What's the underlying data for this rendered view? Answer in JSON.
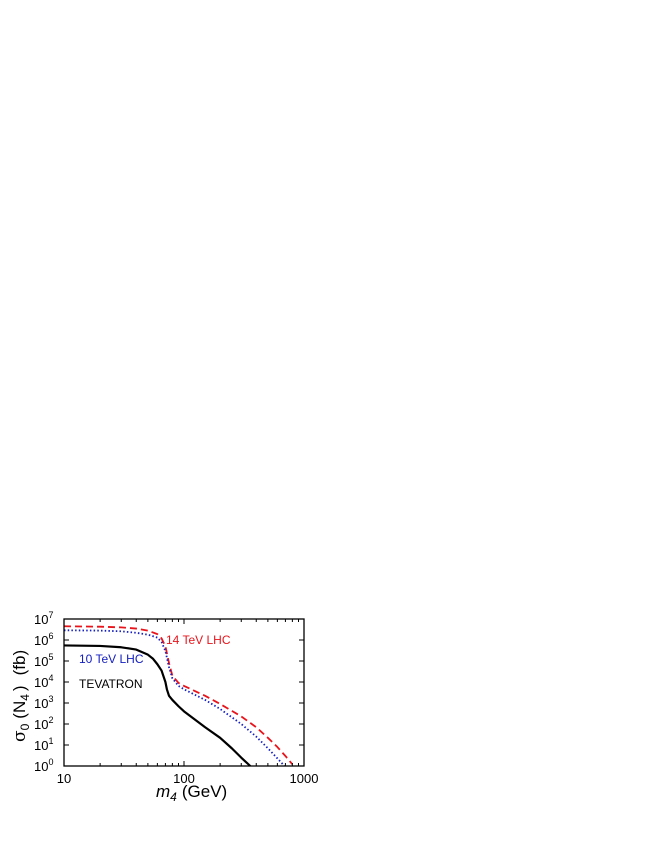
{
  "chart_data": {
    "type": "line",
    "xlabel_var": "m",
    "xlabel_sub": "4",
    "xlabel_unit": "(GeV)",
    "ylabel_sigma": "σ",
    "ylabel_sub0": "0",
    "ylabel_mid": "(N",
    "ylabel_sub4": "4",
    "ylabel_close": ")",
    "ylabel_unit": "(fb)",
    "x_scale": "log",
    "y_scale": "log",
    "xlim": [
      10,
      1000
    ],
    "ylim": [
      1,
      10000000
    ],
    "x_ticks": [
      {
        "value": 10,
        "label": "10"
      },
      {
        "value": 100,
        "label": "100"
      },
      {
        "value": 1000,
        "label": "1000"
      }
    ],
    "y_ticks": [
      {
        "value": 1,
        "base": "10",
        "exp": "0"
      },
      {
        "value": 10,
        "base": "10",
        "exp": "1"
      },
      {
        "value": 100,
        "base": "10",
        "exp": "2"
      },
      {
        "value": 1000,
        "base": "10",
        "exp": "3"
      },
      {
        "value": 10000,
        "base": "10",
        "exp": "4"
      },
      {
        "value": 100000,
        "base": "10",
        "exp": "5"
      },
      {
        "value": 1000000,
        "base": "10",
        "exp": "6"
      },
      {
        "value": 10000000,
        "base": "10",
        "exp": "7"
      }
    ],
    "series": [
      {
        "name": "14 TeV LHC",
        "color": "#e8141b",
        "dash": "dashed",
        "x": [
          10,
          20,
          30,
          40,
          50,
          60,
          65,
          70,
          75,
          80,
          90,
          100,
          150,
          200,
          300,
          400,
          500,
          600,
          700,
          800
        ],
        "y": [
          4500000,
          4300000,
          4000000,
          3500000,
          2800000,
          1900000,
          1200000,
          500000,
          80000,
          20000,
          9000,
          6500,
          2200,
          900,
          230,
          70,
          22,
          8,
          3,
          1.2
        ]
      },
      {
        "name": "10 TeV LHC",
        "color": "#1520c0",
        "dash": "dotted",
        "x": [
          10,
          20,
          30,
          40,
          50,
          60,
          65,
          70,
          75,
          80,
          90,
          100,
          150,
          200,
          300,
          400,
          500,
          600,
          700
        ],
        "y": [
          2900000,
          2800000,
          2600000,
          2200000,
          1800000,
          1300000,
          800000,
          300000,
          50000,
          15000,
          6500,
          4500,
          1400,
          520,
          100,
          25,
          7,
          2.3,
          0.9
        ]
      },
      {
        "name": "TEVATRON",
        "color": "#000000",
        "dash": "solid",
        "x": [
          10,
          20,
          30,
          40,
          50,
          55,
          60,
          65,
          70,
          72,
          75,
          80,
          90,
          100,
          150,
          200,
          250,
          300,
          350,
          370
        ],
        "y": [
          550000,
          520000,
          450000,
          350000,
          200000,
          130000,
          70000,
          35000,
          10000,
          4500,
          2200,
          1400,
          700,
          400,
          70,
          22,
          7,
          2.5,
          1.1,
          0.8
        ]
      }
    ],
    "label_14": "14 TeV LHC",
    "label_10": "10 TeV LHC",
    "label_tev": "TEVATRON",
    "grid": false,
    "legend": "inline labels"
  }
}
